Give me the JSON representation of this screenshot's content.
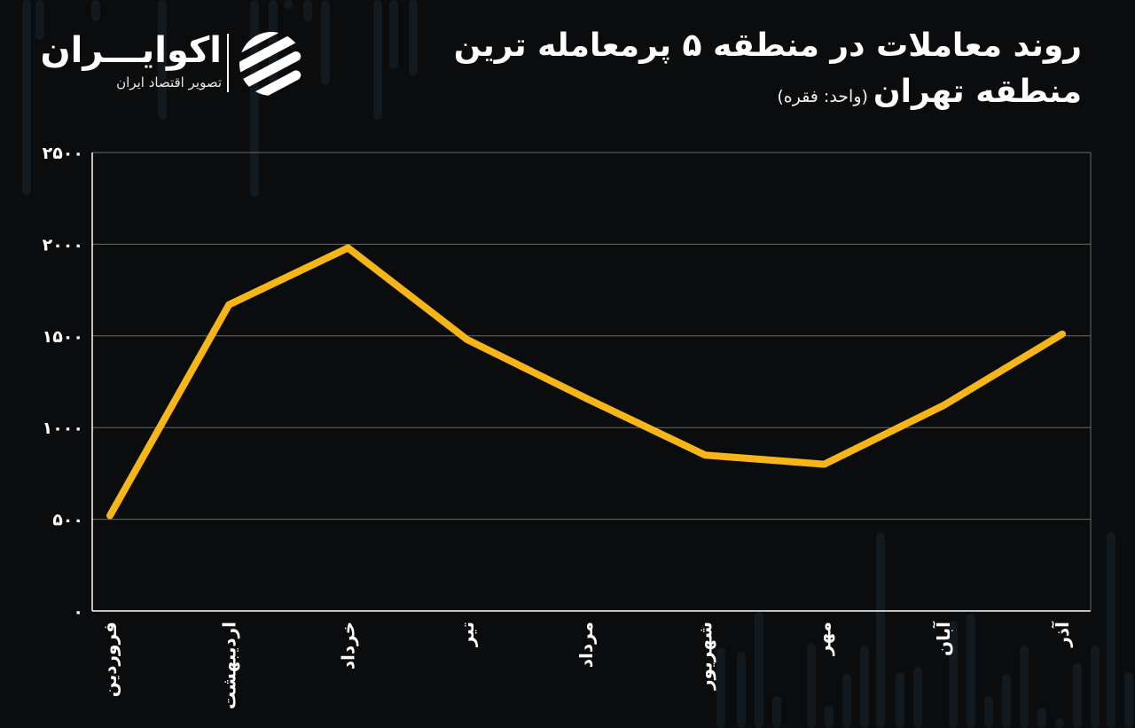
{
  "brand": {
    "name": "اکوایـــران",
    "tagline": "تصویر اقتصاد ایران",
    "logo_icon": "ecoiran-stripes-logo"
  },
  "title": {
    "line1": "روند معاملات در منطقه ۵ پرمعامله ترین",
    "line2": "منطقه تهران",
    "unit": "(واحد: فقره)"
  },
  "colors": {
    "background": "#0b0c0d",
    "line": "#f7b618",
    "grid": "#6a6a6a",
    "axis": "#ffffff",
    "bg_bars": "#1a2730"
  },
  "chart_data": {
    "type": "line",
    "categories": [
      "فروردین",
      "اردیبهشت",
      "خرداد",
      "تیر",
      "مرداد",
      "شهریور",
      "مهر",
      "آبان",
      "آذر"
    ],
    "series": [
      {
        "values": [
          520,
          1670,
          1980,
          1480,
          1160,
          850,
          800,
          1120,
          1510
        ]
      }
    ],
    "ylim": [
      0,
      2500
    ],
    "yticks": [
      0,
      500,
      1000,
      1500,
      2000,
      2500
    ],
    "ytick_labels": [
      "۰",
      "۵۰۰",
      "۱۰۰۰",
      "۱۵۰۰",
      "۲۰۰۰",
      "۲۵۰۰"
    ],
    "grid": true,
    "xlabel": "",
    "ylabel": ""
  }
}
